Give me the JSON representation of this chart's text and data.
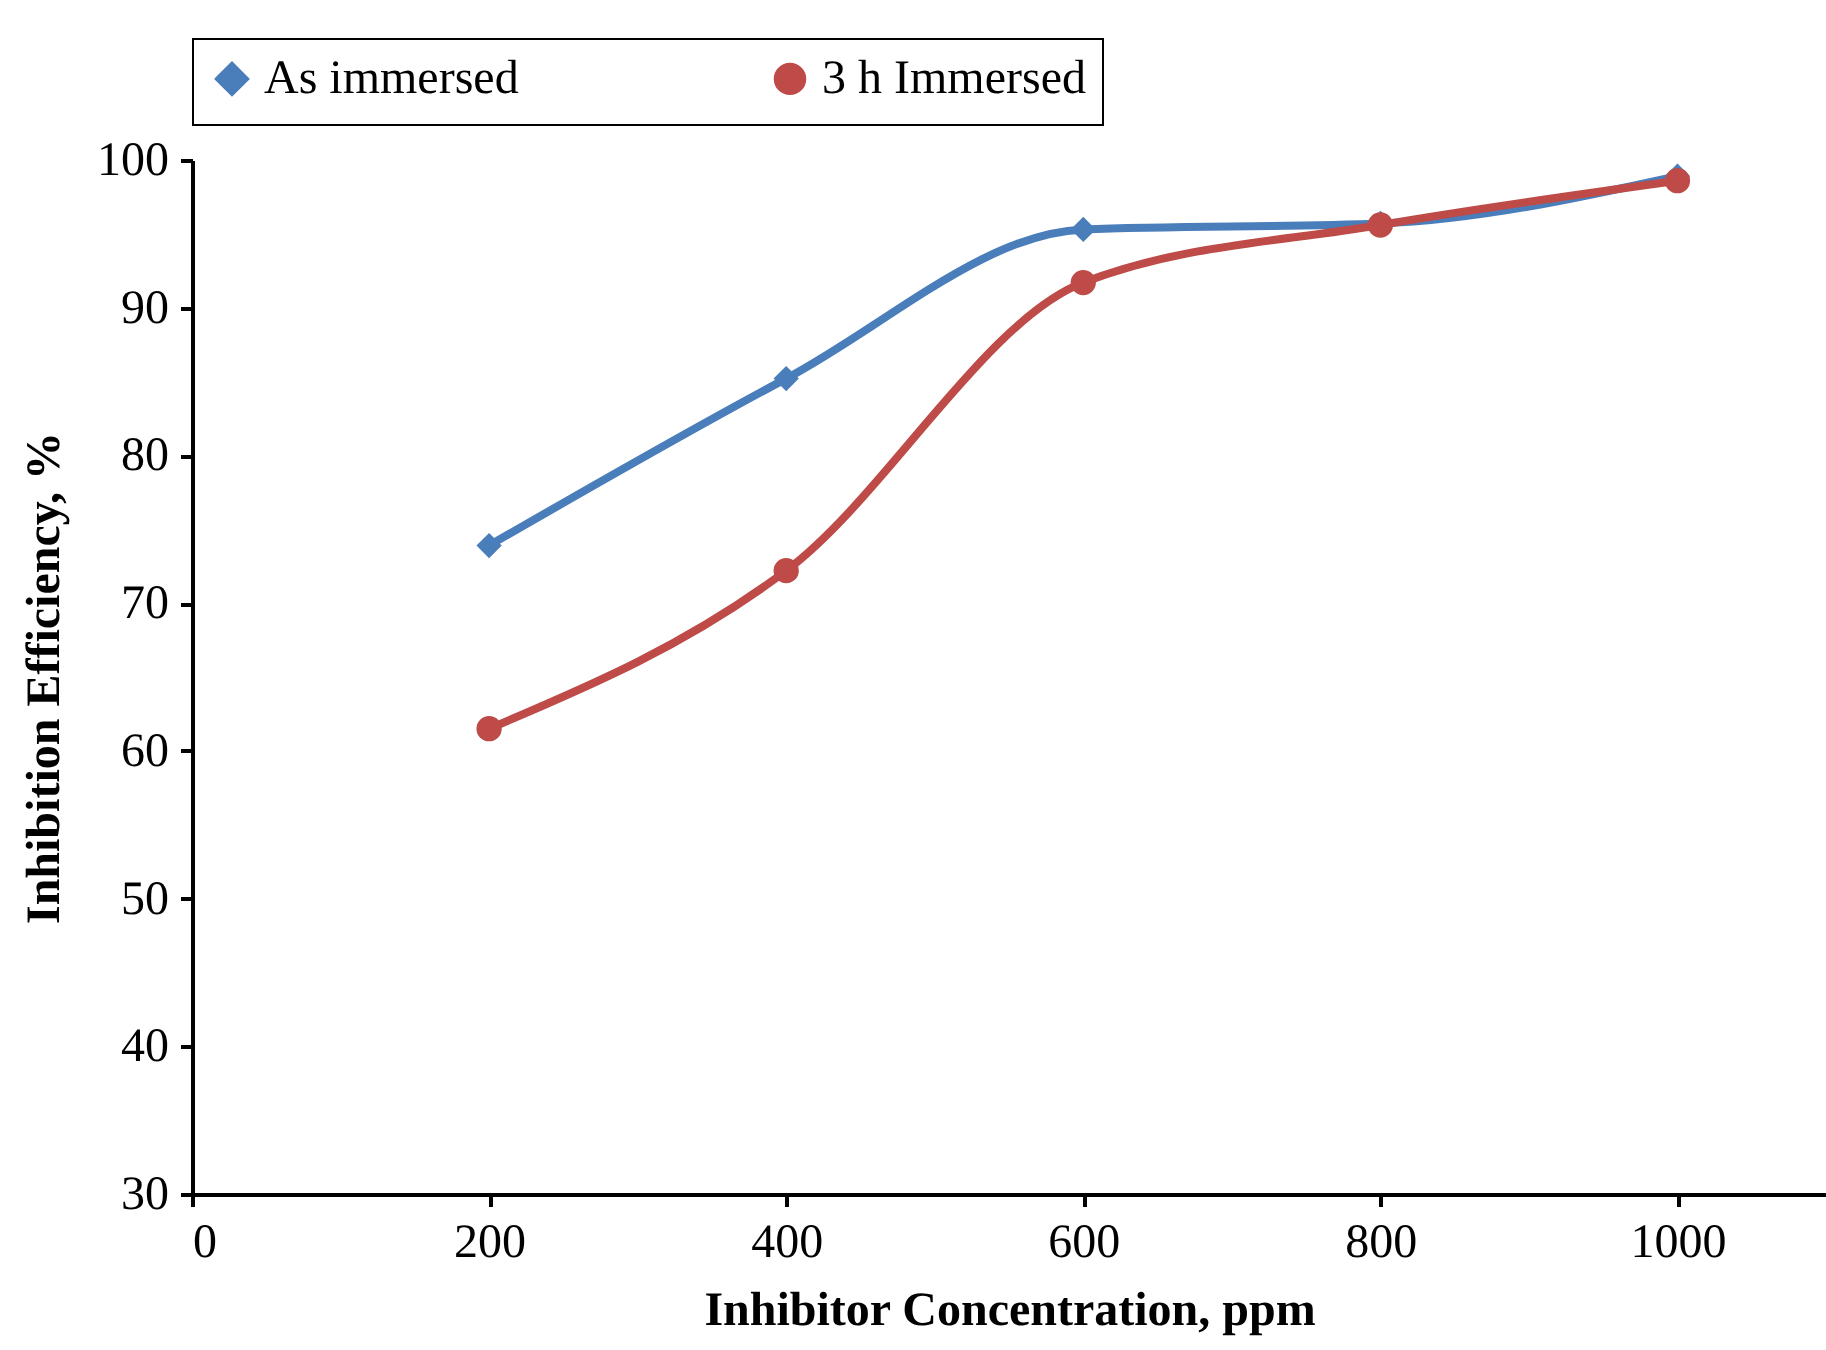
{
  "chart_data": {
    "type": "line",
    "xlabel": "Inhibitor Concentration, ppm",
    "ylabel": "Inhibition Efficiency, %",
    "x": [
      200,
      400,
      600,
      800,
      1000
    ],
    "series": [
      {
        "name": "As immersed",
        "color": "#4a7ebb",
        "marker": "diamond",
        "values": [
          73.9,
          85.2,
          95.3,
          95.7,
          98.9
        ]
      },
      {
        "name": "3 h Immersed",
        "color": "#be4b48",
        "marker": "circle",
        "values": [
          61.5,
          72.2,
          91.7,
          95.6,
          98.6
        ]
      }
    ],
    "xlim": [
      0,
      1100
    ],
    "xticks": [
      0,
      200,
      400,
      600,
      800,
      1000
    ],
    "ylim": [
      30,
      100
    ],
    "yticks": [
      30,
      40,
      50,
      60,
      70,
      80,
      90,
      100
    ],
    "grid": false,
    "legend": "top"
  }
}
